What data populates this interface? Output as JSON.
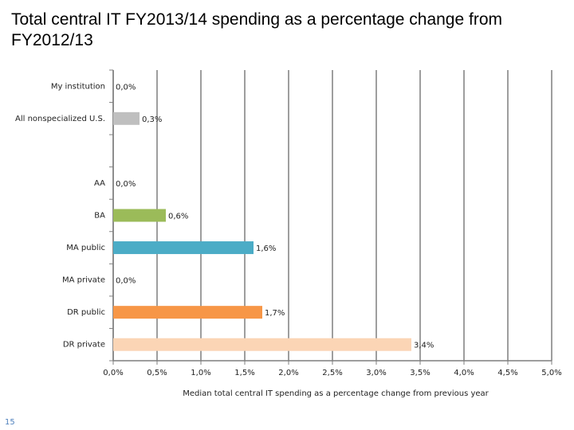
{
  "chart_data": {
    "type": "bar",
    "orientation": "horizontal",
    "title": "Total central IT FY2013/14 spending as a percentage change from FY2012/13",
    "categories": [
      "My institution",
      "All nonspecialized U.S.",
      null,
      "AA",
      "BA",
      "MA public",
      "MA private",
      "DR public",
      "DR private"
    ],
    "values": [
      0,
      0.3,
      null,
      0,
      0.6,
      1.6,
      0,
      1.7,
      3.4
    ],
    "value_labels": [
      "0,0%",
      "0,3%",
      null,
      "0,0%",
      "0,6%",
      "1,6%",
      "0,0%",
      "1,7%",
      "3,4%"
    ],
    "colors": [
      null,
      "#bfbfbf",
      null,
      null,
      "#9bbb59",
      "#4bacc6",
      null,
      "#f79646",
      "#fbd5b5"
    ],
    "xlabel": "Median total central IT spending as a percentage change from previous year",
    "xlim": [
      0,
      5
    ],
    "xticks": [
      {
        "value": 0,
        "label": "0,0%"
      },
      {
        "value": 0.5,
        "label": "0,5%"
      },
      {
        "value": 1,
        "label": "1,0%"
      },
      {
        "value": 1.5,
        "label": "1,5%"
      },
      {
        "value": 2,
        "label": "2,0%"
      },
      {
        "value": 2.5,
        "label": "2,5%"
      },
      {
        "value": 3,
        "label": "3,0%"
      },
      {
        "value": 3.5,
        "label": "3,5%"
      },
      {
        "value": 4,
        "label": "4,0%"
      },
      {
        "value": 4.5,
        "label": "4,5%"
      },
      {
        "value": 5,
        "label": "5,0%"
      }
    ],
    "grid": true
  },
  "page_number": "15"
}
